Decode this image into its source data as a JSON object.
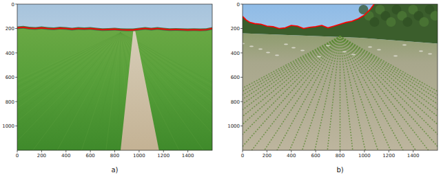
{
  "chart_data": [
    {
      "type": "image",
      "caption": "a)",
      "color": "#ff0000",
      "xlim": [
        0,
        1600
      ],
      "ylim": [
        1200,
        0
      ],
      "xticks": [
        0,
        200,
        400,
        600,
        800,
        1000,
        1200,
        1400
      ],
      "yticks": [
        0,
        200,
        400,
        600,
        800,
        1000
      ],
      "x": [
        0,
        50,
        100,
        150,
        200,
        250,
        300,
        350,
        400,
        450,
        500,
        550,
        600,
        650,
        700,
        750,
        800,
        850,
        900,
        950,
        1000,
        1050,
        1100,
        1150,
        1200,
        1250,
        1300,
        1350,
        1400,
        1450,
        1500,
        1550,
        1600
      ],
      "values": [
        195,
        190,
        198,
        200,
        195,
        200,
        203,
        198,
        200,
        205,
        200,
        203,
        200,
        205,
        210,
        208,
        205,
        210,
        212,
        212,
        205,
        200,
        205,
        200,
        205,
        210,
        208,
        210,
        212,
        210,
        212,
        210,
        200
      ]
    },
    {
      "type": "image",
      "caption": "b)",
      "color": "#ff0000",
      "xlim": [
        0,
        1600
      ],
      "ylim": [
        1200,
        0
      ],
      "xticks": [
        0,
        200,
        400,
        600,
        800,
        1000,
        1200,
        1400
      ],
      "yticks": [
        0,
        200,
        400,
        600,
        800,
        1000
      ],
      "x": [
        0,
        30,
        60,
        100,
        150,
        200,
        250,
        300,
        350,
        400,
        450,
        500,
        550,
        600,
        650,
        700,
        750,
        800,
        850,
        900,
        950,
        1000,
        1050,
        1080
      ],
      "values": [
        100,
        130,
        150,
        160,
        165,
        180,
        185,
        200,
        195,
        175,
        180,
        200,
        190,
        185,
        175,
        195,
        180,
        165,
        150,
        140,
        120,
        90,
        40,
        0
      ]
    }
  ]
}
